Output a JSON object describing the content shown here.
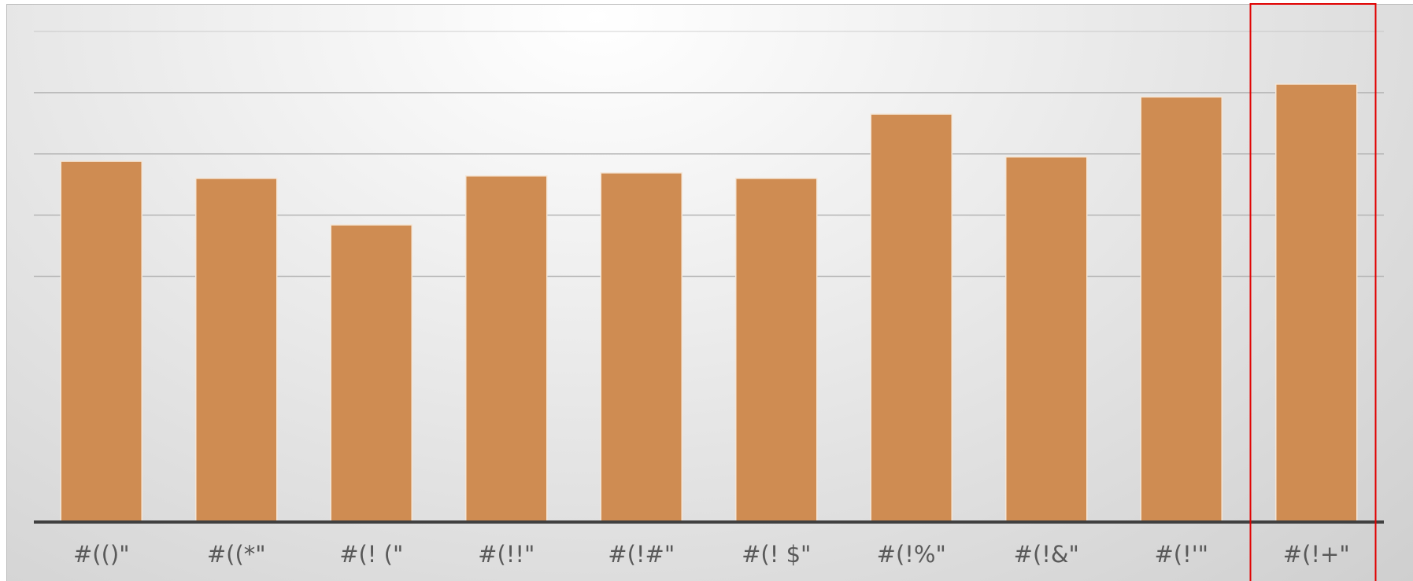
{
  "chart_data": {
    "type": "bar",
    "categories": [
      "#(()\"",
      "#((*\"",
      "#(! (\"",
      "#(!!\"",
      "#(!#\"",
      "#(! $\"",
      "#(!%\"",
      "#(!&\"",
      "#(!'\"",
      "#(!+\""
    ],
    "values": [
      58.8,
      56.0,
      48.4,
      56.4,
      56.9,
      56.0,
      66.5,
      59.5,
      69.3,
      71.4
    ],
    "title": "",
    "xlabel": "",
    "ylabel": "",
    "ylim": [
      0,
      80
    ],
    "grid": true,
    "gridlines": [
      40,
      50,
      60,
      70,
      80
    ],
    "legend": "none",
    "highlighted_category": "#(!+\"",
    "colors": {
      "bar": "#cf8c52",
      "bar_edge": "#f5e6d6",
      "axis": "#404040",
      "gridline": "#b5b5b5",
      "highlight_box": "#e00000"
    }
  }
}
